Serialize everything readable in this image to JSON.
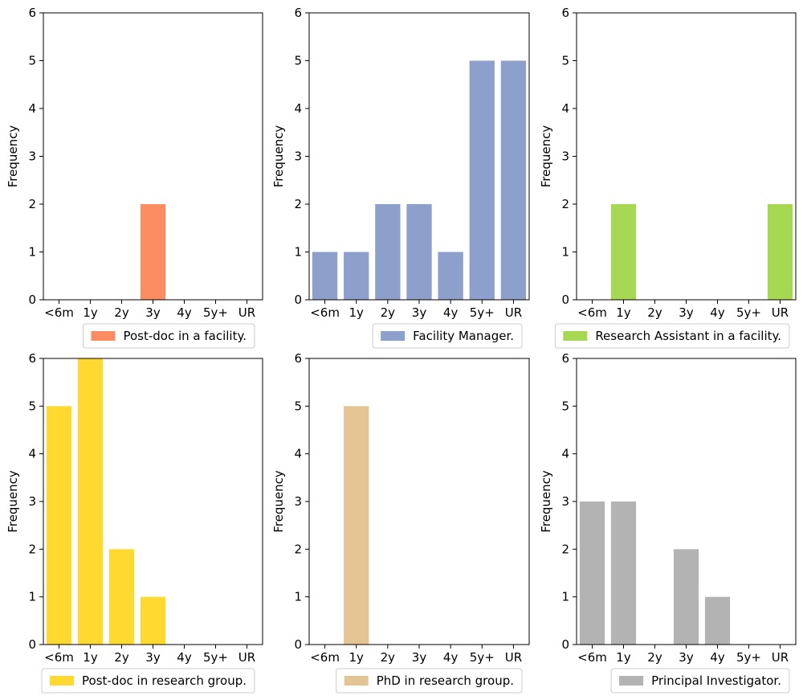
{
  "chart_data": [
    {
      "type": "bar",
      "categories": [
        "<6m",
        "1y",
        "2y",
        "3y",
        "4y",
        "5y+",
        "UR"
      ],
      "values": [
        0,
        0,
        0,
        2,
        0,
        0,
        0
      ],
      "ylabel": "Frequency",
      "ylim": [
        0,
        6
      ],
      "yticks": [
        0,
        1,
        2,
        3,
        4,
        5,
        6
      ],
      "legend": "Post-doc in a facility.",
      "legend_position": "bottom-right",
      "color": "#fc8d62"
    },
    {
      "type": "bar",
      "categories": [
        "<6m",
        "1y",
        "2y",
        "3y",
        "4y",
        "5y+",
        "UR"
      ],
      "values": [
        1,
        1,
        2,
        2,
        1,
        5,
        5
      ],
      "ylabel": "Frequency",
      "ylim": [
        0,
        6
      ],
      "yticks": [
        0,
        1,
        2,
        3,
        4,
        5,
        6
      ],
      "legend": "Facility Manager.",
      "legend_position": "bottom-right",
      "color": "#8da0cb"
    },
    {
      "type": "bar",
      "categories": [
        "<6m",
        "1y",
        "2y",
        "3y",
        "4y",
        "5y+",
        "UR"
      ],
      "values": [
        0,
        2,
        0,
        0,
        0,
        0,
        2
      ],
      "ylabel": "Frequency",
      "ylim": [
        0,
        6
      ],
      "yticks": [
        0,
        1,
        2,
        3,
        4,
        5,
        6
      ],
      "legend": "Research Assistant in a facility.",
      "legend_position": "bottom-right",
      "color": "#a6d854"
    },
    {
      "type": "bar",
      "categories": [
        "<6m",
        "1y",
        "2y",
        "3y",
        "4y",
        "5y+",
        "UR"
      ],
      "values": [
        5,
        6,
        2,
        1,
        0,
        0,
        0
      ],
      "ylabel": "Frequency",
      "ylim": [
        0,
        6
      ],
      "yticks": [
        0,
        1,
        2,
        3,
        4,
        5,
        6
      ],
      "legend": "Post-doc in research group.",
      "legend_position": "bottom-right",
      "color": "#ffd92f"
    },
    {
      "type": "bar",
      "categories": [
        "<6m",
        "1y",
        "2y",
        "3y",
        "4y",
        "5y+",
        "UR"
      ],
      "values": [
        0,
        5,
        0,
        0,
        0,
        0,
        0
      ],
      "ylabel": "Frequency",
      "ylim": [
        0,
        6
      ],
      "yticks": [
        0,
        1,
        2,
        3,
        4,
        5,
        6
      ],
      "legend": "PhD in research group.",
      "legend_position": "bottom-right",
      "color": "#e5c494"
    },
    {
      "type": "bar",
      "categories": [
        "<6m",
        "1y",
        "2y",
        "3y",
        "4y",
        "5y+",
        "UR"
      ],
      "values": [
        3,
        3,
        0,
        2,
        1,
        0,
        0
      ],
      "ylabel": "Frequency",
      "ylim": [
        0,
        6
      ],
      "yticks": [
        0,
        1,
        2,
        3,
        4,
        5,
        6
      ],
      "legend": "Principal Investigator.",
      "legend_position": "bottom-right",
      "color": "#b3b3b3"
    }
  ]
}
